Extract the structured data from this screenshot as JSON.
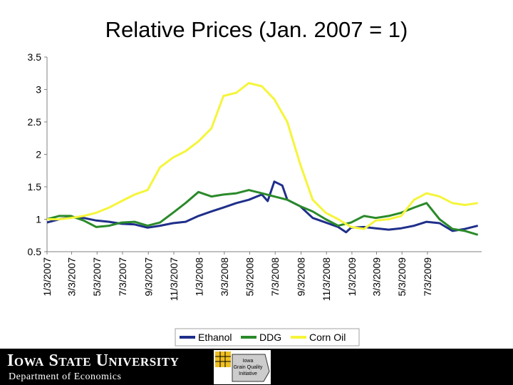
{
  "title": "Relative Prices (Jan. 2007 = 1)",
  "footer": {
    "university": "Iowa State University",
    "department": "Department of Economics",
    "logo_lines": [
      "Iowa",
      "Grain Quality",
      "Initiative"
    ]
  },
  "chart_data": {
    "type": "line",
    "title": "Relative Prices (Jan. 2007 = 1)",
    "xlabel": "",
    "ylabel": "",
    "ylim": [
      0.5,
      3.5
    ],
    "yticks": [
      "0.5",
      "1",
      "1.5",
      "2",
      "2.5",
      "3",
      "3.5"
    ],
    "xticks": [
      "1/3/2007",
      "3/3/2007",
      "5/3/2007",
      "7/3/2007",
      "9/3/2007",
      "11/3/2007",
      "1/3/2008",
      "3/3/2008",
      "5/3/2008",
      "7/3/2008",
      "9/3/2008",
      "11/3/2008",
      "1/3/2009",
      "3/3/2009",
      "5/3/2009",
      "7/3/2009"
    ],
    "grid": false,
    "legend": "bottom",
    "series": [
      {
        "name": "Ethanol",
        "color": "#1f2f8a",
        "x": [
          "2007-01-03",
          "2007-02-01",
          "2007-03-01",
          "2007-04-01",
          "2007-05-01",
          "2007-06-01",
          "2007-07-01",
          "2007-08-01",
          "2007-09-01",
          "2007-10-01",
          "2007-11-01",
          "2007-12-01",
          "2008-01-01",
          "2008-02-01",
          "2008-03-01",
          "2008-04-01",
          "2008-05-01",
          "2008-05-20",
          "2008-06-01",
          "2008-06-15",
          "2008-07-01",
          "2008-07-20",
          "2008-08-01",
          "2008-09-01",
          "2008-10-01",
          "2008-11-01",
          "2008-12-01",
          "2008-12-20",
          "2009-01-01",
          "2009-02-01",
          "2009-03-01",
          "2009-04-01",
          "2009-05-01",
          "2009-06-01",
          "2009-07-01",
          "2009-08-01",
          "2009-09-01",
          "2009-10-01",
          "2009-11-01"
        ],
        "y": [
          0.95,
          1.0,
          1.03,
          1.02,
          0.98,
          0.96,
          0.93,
          0.92,
          0.87,
          0.9,
          0.94,
          0.96,
          1.05,
          1.12,
          1.18,
          1.25,
          1.3,
          1.35,
          1.38,
          1.28,
          1.58,
          1.52,
          1.3,
          1.2,
          1.02,
          0.95,
          0.88,
          0.8,
          0.87,
          0.88,
          0.86,
          0.84,
          0.86,
          0.9,
          0.96,
          0.94,
          0.82,
          0.85,
          0.9
        ]
      },
      {
        "name": "DDG",
        "color": "#2a8a2a",
        "x": [
          "2007-01-03",
          "2007-02-01",
          "2007-03-01",
          "2007-04-01",
          "2007-05-01",
          "2007-06-01",
          "2007-07-01",
          "2007-08-01",
          "2007-09-01",
          "2007-10-01",
          "2007-11-01",
          "2007-12-01",
          "2008-01-01",
          "2008-02-01",
          "2008-03-01",
          "2008-04-01",
          "2008-05-01",
          "2008-06-01",
          "2008-07-01",
          "2008-08-01",
          "2008-09-01",
          "2008-10-01",
          "2008-11-01",
          "2008-12-01",
          "2009-01-01",
          "2009-02-01",
          "2009-03-01",
          "2009-04-01",
          "2009-05-01",
          "2009-06-01",
          "2009-07-01",
          "2009-08-01",
          "2009-09-01",
          "2009-10-01",
          "2009-11-01"
        ],
        "y": [
          1.0,
          1.05,
          1.05,
          0.98,
          0.88,
          0.9,
          0.95,
          0.96,
          0.9,
          0.95,
          1.1,
          1.25,
          1.42,
          1.35,
          1.38,
          1.4,
          1.45,
          1.4,
          1.35,
          1.3,
          1.2,
          1.12,
          1.0,
          0.9,
          0.95,
          1.05,
          1.02,
          1.05,
          1.1,
          1.18,
          1.25,
          1.0,
          0.85,
          0.82,
          0.76
        ]
      },
      {
        "name": "Corn Oil",
        "color": "#f5f53a",
        "x": [
          "2007-01-03",
          "2007-02-01",
          "2007-03-01",
          "2007-04-01",
          "2007-05-01",
          "2007-06-01",
          "2007-07-01",
          "2007-08-01",
          "2007-09-01",
          "2007-10-01",
          "2007-11-01",
          "2007-12-01",
          "2008-01-01",
          "2008-02-01",
          "2008-03-01",
          "2008-04-01",
          "2008-05-01",
          "2008-06-01",
          "2008-07-01",
          "2008-08-01",
          "2008-09-01",
          "2008-10-01",
          "2008-11-01",
          "2008-12-01",
          "2009-01-01",
          "2009-02-01",
          "2009-03-01",
          "2009-04-01",
          "2009-05-01",
          "2009-06-01",
          "2009-07-01",
          "2009-08-01",
          "2009-09-01",
          "2009-10-01",
          "2009-11-01"
        ],
        "y": [
          1.0,
          1.0,
          1.02,
          1.05,
          1.1,
          1.18,
          1.28,
          1.38,
          1.45,
          1.8,
          1.95,
          2.05,
          2.2,
          2.4,
          2.9,
          2.95,
          3.1,
          3.05,
          2.85,
          2.5,
          1.85,
          1.3,
          1.1,
          1.0,
          0.88,
          0.85,
          0.98,
          1.0,
          1.05,
          1.3,
          1.4,
          1.35,
          1.25,
          1.22,
          1.25
        ]
      }
    ]
  }
}
